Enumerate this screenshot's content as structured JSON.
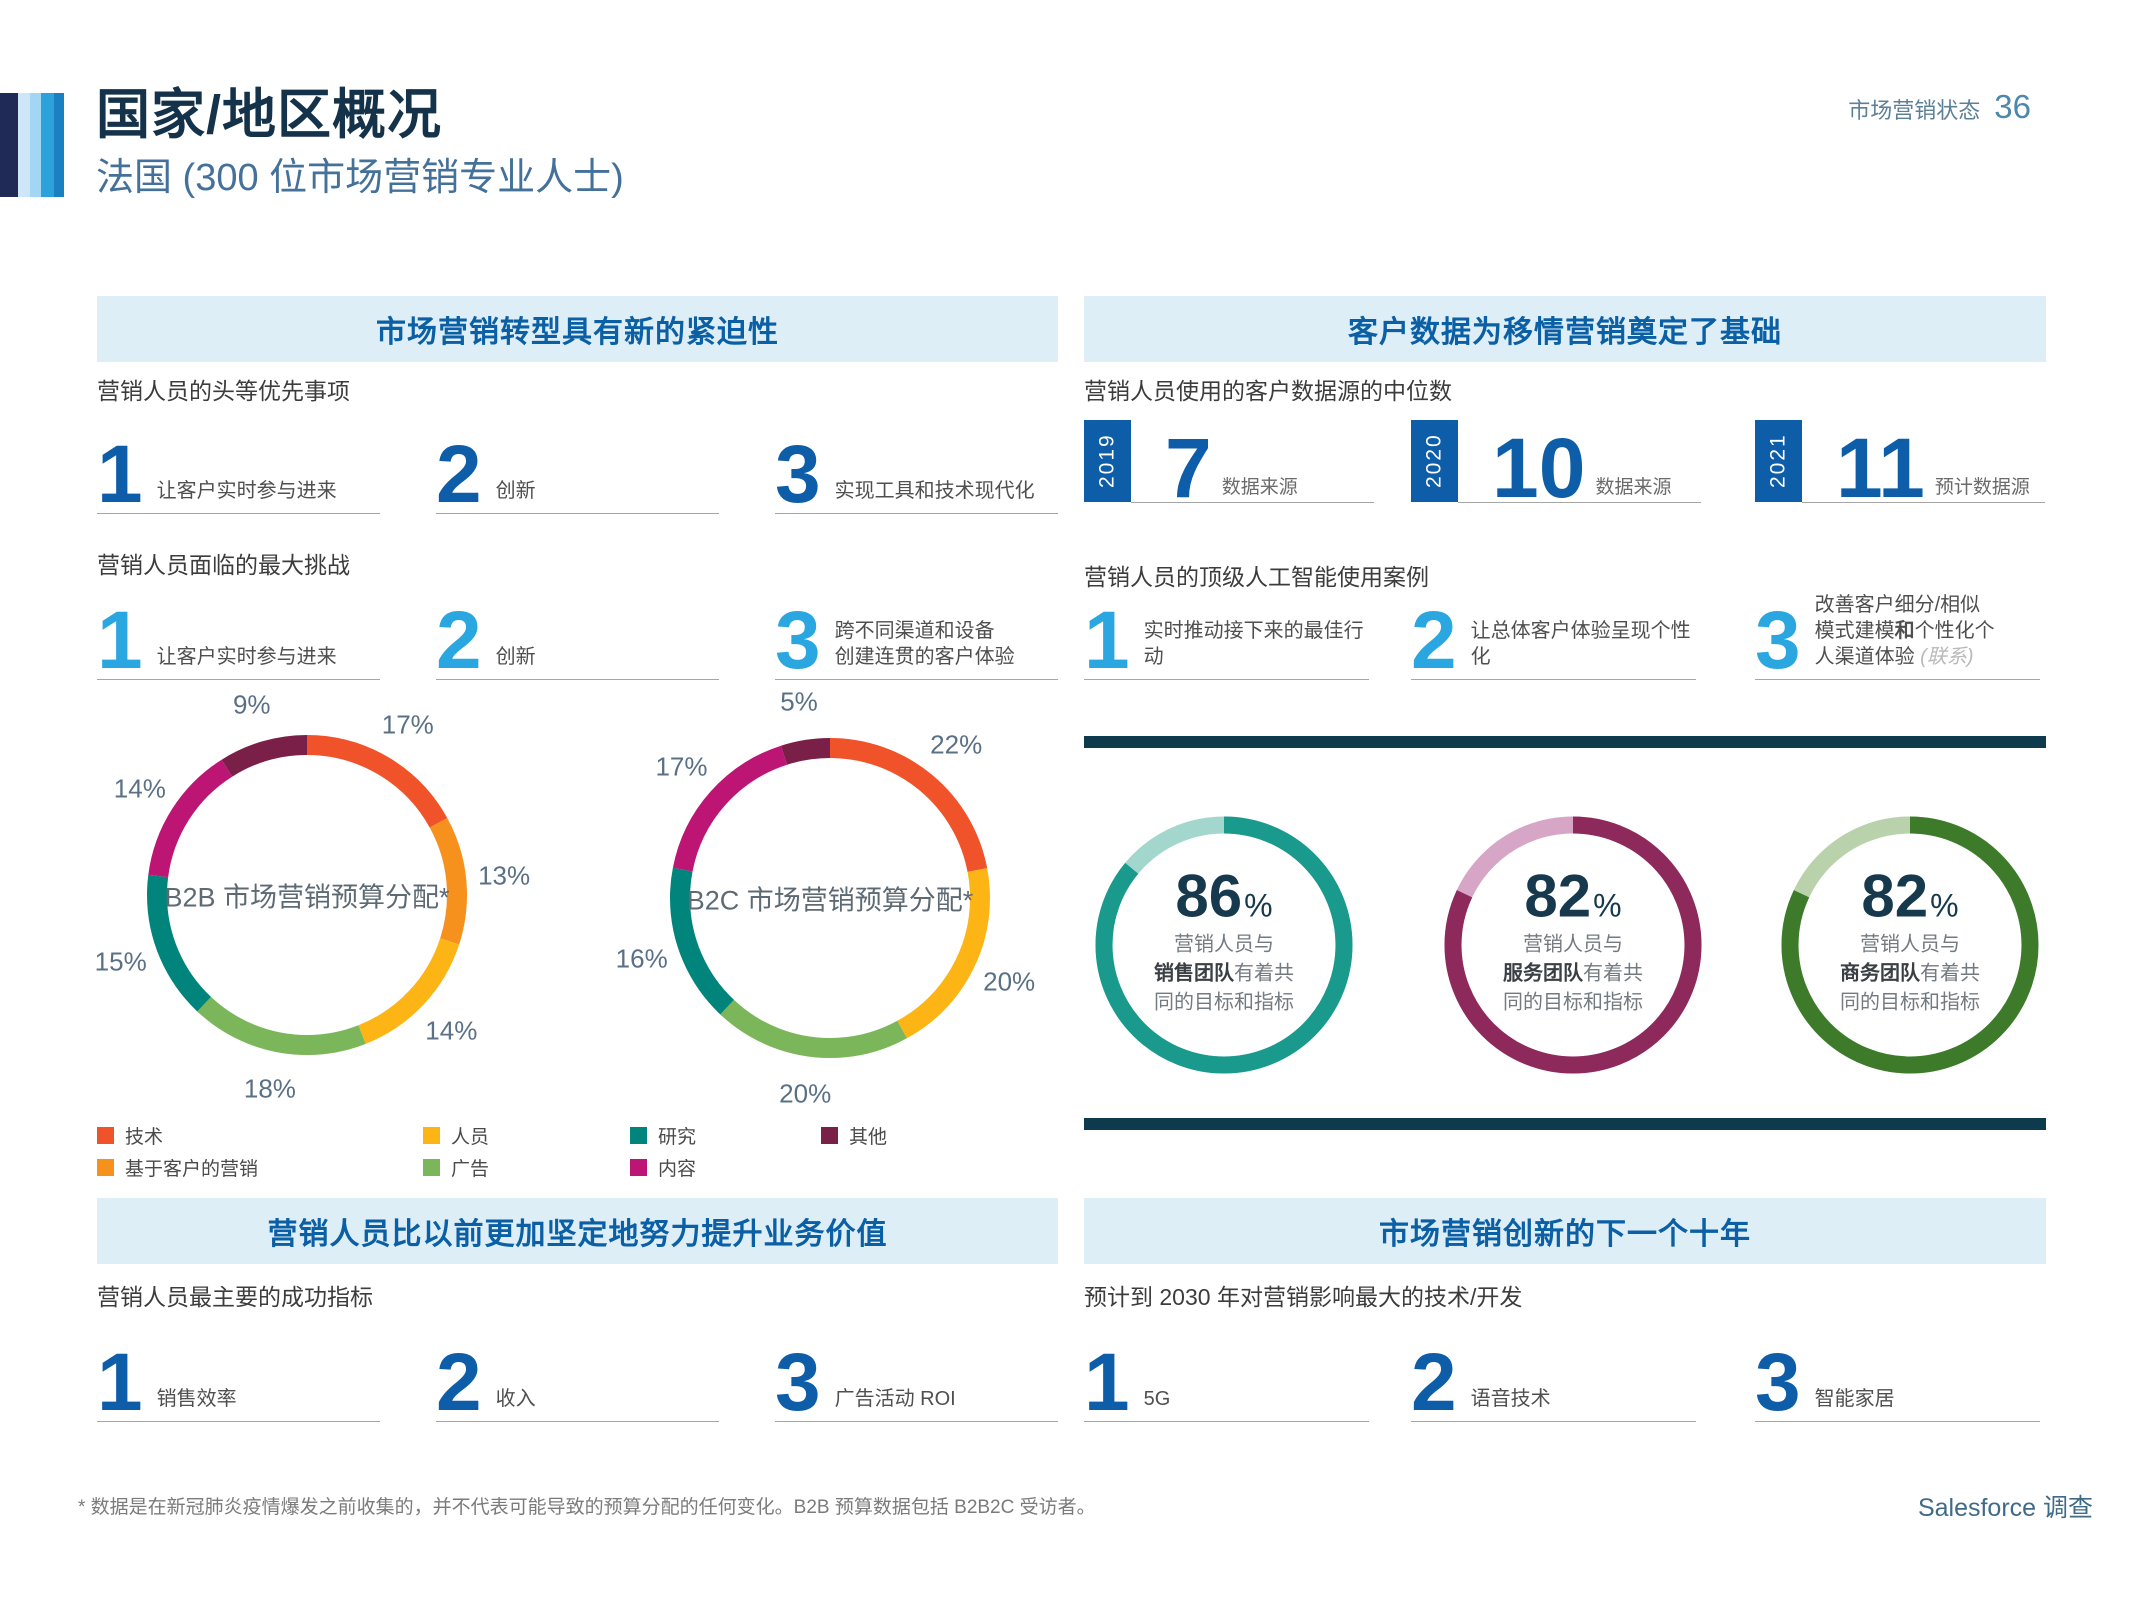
{
  "page": {
    "title": "国家/地区概况",
    "subtitle": "法国 (300 位市场营销专业人士)",
    "header_right_label": "市场营销状态",
    "header_right_page": "36",
    "footnote": "* 数据是在新冠肺炎疫情爆发之前收集的，并不代表可能导致的预算分配的任何变化。B2B 预算数据包括 B2B2C 受访者。",
    "source": "Salesforce 调查",
    "brand_colors": [
      "#202a56",
      "#cde7f8",
      "#a3d6f3",
      "#2ca2dc",
      "#1b80c2"
    ],
    "accent_blue": "#0d5da8",
    "accent_cyan": "#2aa6e0",
    "band_bg": "#ddeef7",
    "divider_color": "#0d3a4c"
  },
  "sections": {
    "transformation": {
      "title": "市场营销转型具有新的紧迫性",
      "priorities_label": "营销人员的头等优先事项",
      "priorities": [
        {
          "n": "1",
          "text": "让客户实时参与进来"
        },
        {
          "n": "2",
          "text": "创新"
        },
        {
          "n": "3",
          "text": "实现工具和技术现代化"
        }
      ],
      "challenges_label": "营销人员面临的最大挑战",
      "challenges": [
        {
          "n": "1",
          "text": "让客户实时参与进来"
        },
        {
          "n": "2",
          "text": "创新"
        },
        {
          "n": "3",
          "text": "跨不同渠道和设备\n创建连贯的客户体验"
        }
      ]
    },
    "customer_data": {
      "title": "客户数据为移情营销奠定了基础",
      "sources_label": "营销人员使用的客户数据源的中位数",
      "sources": [
        {
          "year": "2019",
          "value": "7",
          "label": "数据来源"
        },
        {
          "year": "2020",
          "value": "10",
          "label": "数据来源"
        },
        {
          "year": "2021",
          "value": "11",
          "label": "预计数据源"
        }
      ],
      "ai_label": "营销人员的顶级人工智能使用案例",
      "ai_cases": [
        {
          "n": "1",
          "text": "实时推动接下来的最佳行动"
        },
        {
          "n": "2",
          "text": "让总体客户体验呈现个性化"
        },
        {
          "n": "3",
          "p1": "改善客户细分/相似\n模式建模",
          "bold": "和",
          "p2": "个性化个\n人渠道体验 ",
          "italic": "(联系)"
        }
      ]
    },
    "business_value": {
      "title": "营销人员比以前更加坚定地努力提升业务价值",
      "metrics_label": "营销人员最主要的成功指标",
      "metrics": [
        {
          "n": "1",
          "text": "销售效率"
        },
        {
          "n": "2",
          "text": "收入"
        },
        {
          "n": "3",
          "text": "广告活动 ROI"
        }
      ]
    },
    "innovation": {
      "title": "市场营销创新的下一个十年",
      "tech_label": "预计到 2030 年对营销影响最大的技术/开发",
      "technologies": [
        {
          "n": "1",
          "text": "5G"
        },
        {
          "n": "2",
          "text": "语音技术"
        },
        {
          "n": "3",
          "text": "智能家居"
        }
      ]
    }
  },
  "legend": {
    "items": [
      {
        "label": "技术",
        "color": "#f0532a"
      },
      {
        "label": "基于客户的营销",
        "color": "#f6911e"
      },
      {
        "label": "人员",
        "color": "#fcb515"
      },
      {
        "label": "广告",
        "color": "#7bb75a"
      },
      {
        "label": "研究",
        "color": "#00847b"
      },
      {
        "label": "内容",
        "color": "#bd1574"
      },
      {
        "label": "其他",
        "color": "#7a1f47"
      }
    ]
  },
  "chart_data": [
    {
      "type": "donut",
      "title": "B2B 市场营销预算分配*",
      "unit": "%",
      "slices": [
        {
          "label": "技术",
          "value": 17,
          "color": "#f0532a"
        },
        {
          "label": "基于客户的营销",
          "value": 13,
          "color": "#f6911e"
        },
        {
          "label": "人员",
          "value": 14,
          "color": "#fcb515"
        },
        {
          "label": "广告",
          "value": 18,
          "color": "#7bb75a"
        },
        {
          "label": "研究",
          "value": 15,
          "color": "#00847b"
        },
        {
          "label": "内容",
          "value": 14,
          "color": "#bd1574"
        },
        {
          "label": "其他",
          "value": 9,
          "color": "#7a1f47"
        }
      ]
    },
    {
      "type": "donut",
      "title": "B2C 市场营销预算分配*",
      "unit": "%",
      "slices": [
        {
          "label": "技术",
          "value": 22,
          "color": "#f0532a"
        },
        {
          "label": "人员",
          "value": 20,
          "color": "#fcb515"
        },
        {
          "label": "广告",
          "value": 20,
          "color": "#7bb75a"
        },
        {
          "label": "研究",
          "value": 16,
          "color": "#00847b"
        },
        {
          "label": "内容",
          "value": 17,
          "color": "#bd1574"
        },
        {
          "label": "其他",
          "value": 5,
          "color": "#7a1f47"
        }
      ]
    },
    {
      "type": "gauge",
      "value": 86,
      "suffix": "%",
      "color": "#199a8c",
      "track_color": "#a3d7cd",
      "text": {
        "line1": "营销人员与",
        "team": "销售团队",
        "rest": "有着共\n同的目标和指标"
      }
    },
    {
      "type": "gauge",
      "value": 82,
      "suffix": "%",
      "color": "#8d2a5b",
      "track_color": "#d7a6c6",
      "text": {
        "line1": "营销人员与",
        "team": "服务团队",
        "rest": "有着共\n同的目标和指标"
      }
    },
    {
      "type": "gauge",
      "value": 82,
      "suffix": "%",
      "color": "#3d7b2b",
      "track_color": "#b9d2ab",
      "text": {
        "line1": "营销人员与",
        "team": "商务团队",
        "rest": "有着共\n同的目标和指标"
      }
    }
  ]
}
